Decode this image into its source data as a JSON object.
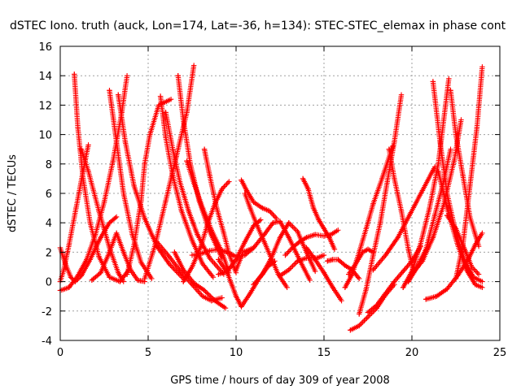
{
  "chart_data": {
    "type": "scatter",
    "title": "dSTEC Iono. truth (auck, Lon=174, Lat=-36, h=134): STEC-STEC_elemax in phase cont",
    "xlabel": "GPS time / hours of day 309 of year 2008",
    "ylabel": "dSTEC  / TECUs",
    "xlim": [
      0,
      25
    ],
    "ylim": [
      -4,
      16
    ],
    "xticks": [
      0,
      5,
      10,
      15,
      20,
      25
    ],
    "yticks": [
      -4,
      -2,
      0,
      2,
      4,
      6,
      8,
      10,
      12,
      14,
      16
    ],
    "grid": true,
    "marker": "+",
    "series_color": "#ff0000",
    "series": [
      {
        "x": [
          0.0,
          0.3,
          0.6,
          0.85,
          1.2,
          1.7,
          2.3,
          2.8,
          3.2
        ],
        "y": [
          2.3,
          1.2,
          0.3,
          0.0,
          0.4,
          1.5,
          3.0,
          4.0,
          4.4
        ]
      },
      {
        "x": [
          0.0,
          0.5,
          1.0,
          1.5,
          2.0,
          2.5,
          3.0,
          3.5,
          3.8
        ],
        "y": [
          -0.6,
          -0.4,
          0.4,
          1.5,
          3.2,
          5.4,
          8.2,
          11.5,
          14.0
        ]
      },
      {
        "x": [
          0.8,
          1.0,
          1.3,
          1.7,
          2.2,
          2.8,
          3.4,
          3.9
        ],
        "y": [
          14.1,
          10.5,
          7.0,
          4.0,
          1.7,
          0.3,
          0.0,
          0.8
        ]
      },
      {
        "x": [
          0.0,
          0.2,
          0.5,
          0.9,
          1.3,
          1.6
        ],
        "y": [
          0.0,
          0.8,
          2.5,
          5.0,
          7.5,
          9.3
        ]
      },
      {
        "x": [
          1.2,
          1.6,
          2.2,
          2.8,
          3.3,
          3.6
        ],
        "y": [
          9.0,
          7.5,
          4.8,
          2.3,
          0.6,
          0.0
        ]
      },
      {
        "x": [
          1.8,
          2.3,
          2.8,
          3.2,
          3.6,
          4.0,
          4.4,
          4.8
        ],
        "y": [
          0.1,
          0.6,
          2.0,
          3.3,
          2.0,
          0.8,
          0.1,
          0.0
        ]
      },
      {
        "x": [
          2.8,
          3.2,
          3.6,
          4.1,
          4.6,
          5.2
        ],
        "y": [
          13.0,
          9.5,
          6.0,
          3.2,
          1.3,
          0.2
        ]
      },
      {
        "x": [
          3.3,
          3.7,
          4.2,
          4.8,
          5.5,
          6.2,
          7.0
        ],
        "y": [
          12.7,
          9.5,
          6.5,
          4.3,
          2.4,
          1.2,
          0.2
        ]
      },
      {
        "x": [
          3.8,
          4.2,
          4.6,
          4.8,
          5.1,
          5.6,
          6.3
        ],
        "y": [
          0.5,
          2.5,
          5.5,
          8.0,
          10.0,
          12.0,
          12.4
        ]
      },
      {
        "x": [
          4.8,
          5.4,
          6.0,
          6.6,
          7.2,
          7.6
        ],
        "y": [
          0.2,
          2.5,
          5.5,
          8.5,
          11.5,
          14.7
        ]
      },
      {
        "x": [
          5.7,
          6.0,
          6.4,
          6.9,
          7.5,
          8.1,
          8.7
        ],
        "y": [
          12.6,
          9.8,
          7.2,
          4.8,
          2.8,
          1.2,
          0.3
        ]
      },
      {
        "x": [
          6.0,
          6.4,
          6.8,
          7.3,
          7.8,
          8.5,
          9.3
        ],
        "y": [
          11.5,
          9.0,
          6.8,
          4.8,
          3.2,
          1.6,
          0.5
        ]
      },
      {
        "x": [
          6.7,
          7.0,
          7.4,
          7.9,
          8.5,
          9.2
        ],
        "y": [
          14.0,
          11.0,
          8.0,
          5.5,
          3.4,
          1.6
        ]
      },
      {
        "x": [
          6.5,
          7.0,
          7.6,
          8.2,
          8.8,
          9.4
        ],
        "y": [
          2.0,
          0.8,
          -0.1,
          -0.6,
          -1.3,
          -1.8
        ]
      },
      {
        "x": [
          5.5,
          6.2,
          6.9,
          7.5,
          8.1,
          8.6,
          9.2
        ],
        "y": [
          2.7,
          1.7,
          0.6,
          -0.2,
          -1.0,
          -1.3,
          -1.1
        ]
      },
      {
        "x": [
          7.2,
          7.6,
          8.1,
          8.6,
          9.2,
          9.6
        ],
        "y": [
          8.2,
          6.7,
          5.0,
          3.5,
          2.0,
          0.6
        ]
      },
      {
        "x": [
          7.0,
          7.5,
          8.0,
          8.4,
          8.8,
          9.2,
          9.6
        ],
        "y": [
          0.0,
          1.0,
          2.4,
          4.0,
          5.3,
          6.3,
          6.8
        ]
      },
      {
        "x": [
          8.2,
          8.5,
          8.9,
          9.3,
          9.6,
          10.0
        ],
        "y": [
          9.0,
          7.2,
          5.0,
          3.3,
          1.9,
          0.6
        ]
      },
      {
        "x": [
          7.5,
          8.0,
          8.5,
          9.0,
          9.5,
          10.0,
          10.5,
          11.0
        ],
        "y": [
          1.8,
          1.9,
          2.1,
          2.2,
          2.0,
          1.7,
          1.8,
          2.3
        ]
      },
      {
        "x": [
          9.0,
          9.5,
          10.0,
          10.3,
          10.8,
          11.3,
          11.8,
          12.2
        ],
        "y": [
          1.5,
          0.6,
          -1.0,
          -1.7,
          -0.8,
          0.2,
          1.0,
          1.4
        ]
      },
      {
        "x": [
          9.0,
          9.5,
          10.0,
          10.5,
          11.0,
          11.4
        ],
        "y": [
          0.5,
          0.7,
          1.5,
          2.7,
          3.8,
          4.2
        ]
      },
      {
        "x": [
          10.3,
          10.6,
          11.0,
          11.5,
          11.9,
          12.3
        ],
        "y": [
          6.9,
          6.2,
          5.4,
          5.0,
          4.8,
          4.3
        ]
      },
      {
        "x": [
          10.5,
          10.8,
          11.2,
          11.6,
          12.0,
          12.4,
          12.9
        ],
        "y": [
          6.0,
          5.0,
          3.8,
          2.7,
          1.6,
          0.5,
          -0.4
        ]
      },
      {
        "x": [
          10.0,
          10.4,
          11.0,
          11.6,
          12.1,
          12.5,
          13.0,
          13.6,
          14.2
        ],
        "y": [
          0.8,
          2.0,
          2.3,
          3.2,
          4.0,
          4.1,
          3.0,
          1.5,
          0.1
        ]
      },
      {
        "x": [
          11.0,
          11.5,
          12.0,
          12.5,
          13.0,
          13.5,
          14.0,
          14.5
        ],
        "y": [
          -0.2,
          0.5,
          1.6,
          3.0,
          4.0,
          3.4,
          2.0,
          0.7
        ]
      },
      {
        "x": [
          12.8,
          13.2,
          13.6,
          14.0,
          14.5,
          15.0,
          15.4,
          15.8
        ],
        "y": [
          1.8,
          2.3,
          2.7,
          3.0,
          3.2,
          3.1,
          3.2,
          3.5
        ]
      },
      {
        "x": [
          12.5,
          13.0,
          13.5,
          14.0,
          14.6,
          15.0
        ],
        "y": [
          0.4,
          0.8,
          1.4,
          1.6,
          1.6,
          1.8
        ]
      },
      {
        "x": [
          13.8,
          14.1,
          14.4,
          14.7,
          15.0,
          15.3,
          15.6
        ],
        "y": [
          7.0,
          6.3,
          5.0,
          4.2,
          3.6,
          3.0,
          2.2
        ]
      },
      {
        "x": [
          14.0,
          14.5,
          15.0,
          15.5,
          16.0
        ],
        "y": [
          2.3,
          1.5,
          0.6,
          -0.4,
          -1.3
        ]
      },
      {
        "x": [
          15.2,
          15.5,
          15.8,
          16.2,
          16.6,
          17.0
        ],
        "y": [
          1.4,
          1.5,
          1.5,
          1.1,
          0.8,
          0.2
        ]
      },
      {
        "x": [
          16.4,
          16.8,
          17.2,
          17.5,
          17.8
        ],
        "y": [
          0.5,
          1.2,
          2.0,
          2.2,
          2.0
        ]
      },
      {
        "x": [
          16.5,
          17.0,
          17.5,
          18.0,
          18.5,
          19.0
        ],
        "y": [
          -3.3,
          -3.0,
          -2.4,
          -1.8,
          -0.9,
          -0.2
        ]
      },
      {
        "x": [
          16.2,
          16.6,
          17.0,
          17.4,
          17.8,
          18.3,
          18.9
        ],
        "y": [
          -0.4,
          0.5,
          2.0,
          3.6,
          5.3,
          7.0,
          9.2
        ]
      },
      {
        "x": [
          17.0,
          17.4,
          17.8,
          18.2,
          18.6,
          19.0,
          19.4
        ],
        "y": [
          -2.2,
          -0.5,
          1.8,
          4.0,
          6.8,
          9.5,
          12.7
        ]
      },
      {
        "x": [
          17.5,
          18.0,
          18.5,
          19.0,
          19.5,
          20.0,
          20.5
        ],
        "y": [
          -2.1,
          -1.6,
          -0.8,
          0.0,
          0.7,
          1.4,
          2.4
        ]
      },
      {
        "x": [
          18.7,
          19.0,
          19.4,
          19.8,
          20.1
        ],
        "y": [
          9.0,
          7.0,
          4.8,
          2.2,
          0.6
        ]
      },
      {
        "x": [
          17.8,
          18.5,
          19.2,
          19.9,
          20.6,
          21.3
        ],
        "y": [
          0.8,
          1.8,
          3.0,
          4.6,
          6.2,
          7.8
        ]
      },
      {
        "x": [
          19.5,
          20.0,
          20.5,
          21.0,
          21.5,
          22.1
        ],
        "y": [
          -0.4,
          0.7,
          2.6,
          5.0,
          8.0,
          13.8
        ]
      },
      {
        "x": [
          19.8,
          20.3,
          20.8,
          21.3,
          21.8,
          22.2
        ],
        "y": [
          0.0,
          1.0,
          2.2,
          4.5,
          6.8,
          9.0
        ]
      },
      {
        "x": [
          21.2,
          21.6,
          22.0,
          22.5,
          23.0,
          23.5,
          24.0
        ],
        "y": [
          13.6,
          9.5,
          6.0,
          3.3,
          1.4,
          0.3,
          0.0
        ]
      },
      {
        "x": [
          20.0,
          20.6,
          21.2,
          21.8,
          22.4,
          22.8
        ],
        "y": [
          0.5,
          1.4,
          3.0,
          5.2,
          8.2,
          11.0
        ]
      },
      {
        "x": [
          22.2,
          22.5,
          22.9,
          23.3,
          23.8
        ],
        "y": [
          13.0,
          10.0,
          7.2,
          4.4,
          2.4
        ]
      },
      {
        "x": [
          21.5,
          22.0,
          22.6,
          23.1,
          23.6,
          24.0
        ],
        "y": [
          7.5,
          5.0,
          2.5,
          0.8,
          -0.2,
          -0.4
        ]
      },
      {
        "x": [
          22.5,
          22.9,
          23.3,
          23.7,
          24.0
        ],
        "y": [
          0.2,
          2.5,
          6.5,
          10.5,
          14.6
        ]
      },
      {
        "x": [
          20.8,
          21.4,
          22.0,
          22.6,
          23.2,
          23.6,
          24.0
        ],
        "y": [
          -1.2,
          -1.0,
          -0.5,
          0.4,
          1.5,
          2.5,
          3.3
        ]
      },
      {
        "x": [
          22.0,
          22.5,
          23.0,
          23.4,
          23.8
        ],
        "y": [
          4.5,
          3.6,
          2.2,
          1.0,
          0.5
        ]
      }
    ]
  }
}
